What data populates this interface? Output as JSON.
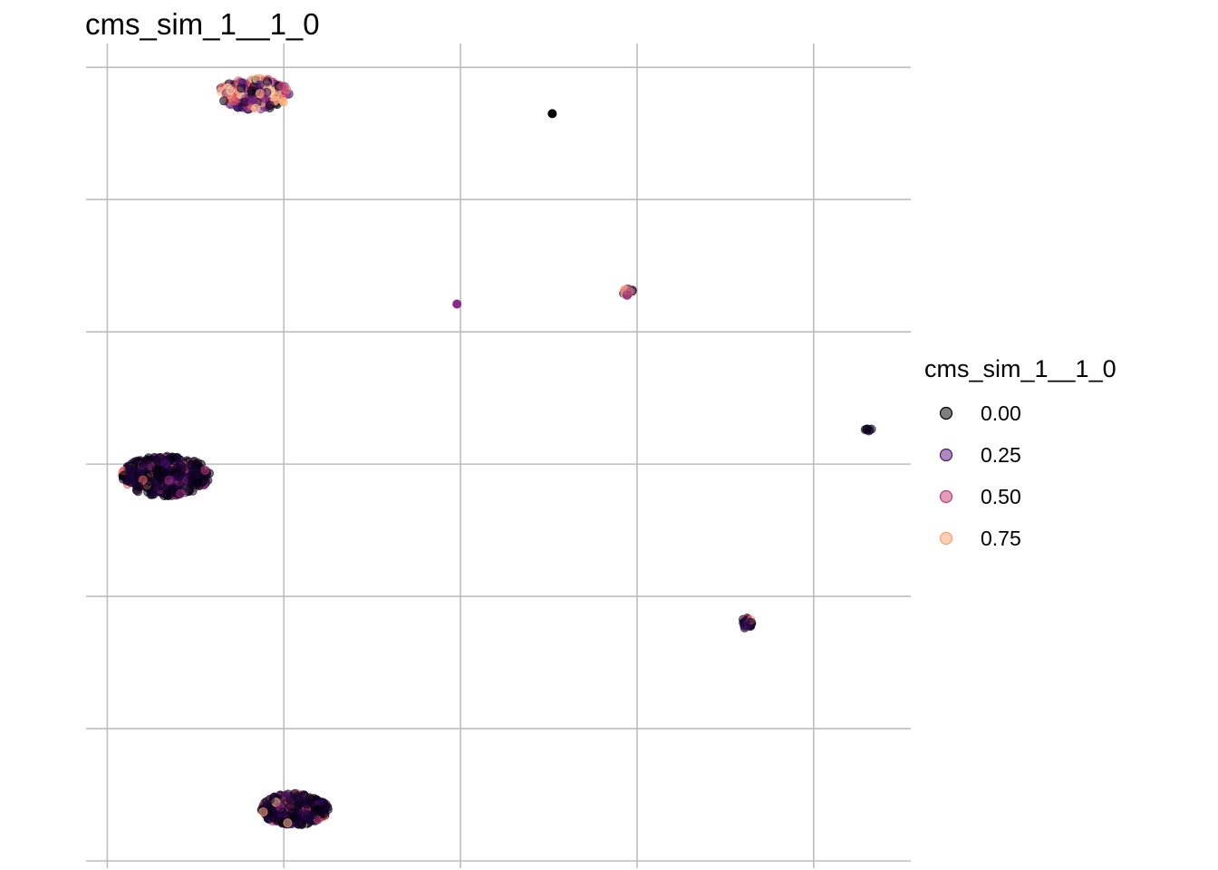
{
  "chart_data": {
    "type": "scatter",
    "title": "cms_sim_1__1_0",
    "xlabel": "",
    "ylabel": "",
    "grid": true,
    "axis_tick_labels_shown": false,
    "legend": {
      "title": "cms_sim_1__1_0",
      "position": "right",
      "entries": [
        {
          "label": "0.00",
          "value": 0.0,
          "color": "#000004"
        },
        {
          "label": "0.25",
          "value": 0.25,
          "color": "#57157e"
        },
        {
          "label": "0.50",
          "value": 0.5,
          "color": "#c43c75"
        },
        {
          "label": "0.75",
          "value": 0.75,
          "color": "#fe9f6d"
        }
      ]
    },
    "color_scale": [
      "#000004",
      "#3b0f70",
      "#8c2981",
      "#de4968",
      "#fe9f6d",
      "#fcfdbf"
    ],
    "x_gridlines": [
      0,
      1,
      2,
      3,
      4
    ],
    "y_gridlines": [
      0,
      1,
      2,
      3,
      4,
      5,
      6
    ],
    "xlim": [
      -0.12,
      4.55
    ],
    "ylim": [
      0,
      6.18
    ],
    "clusters": [
      {
        "x": 0.83,
        "y": 5.8,
        "spread_x": 0.2,
        "spread_y": 0.12,
        "n": 220,
        "mean_value": 0.55
      },
      {
        "x": 0.33,
        "y": 2.91,
        "spread_x": 0.25,
        "spread_y": 0.15,
        "n": 500,
        "mean_value": 0.05
      },
      {
        "x": 1.06,
        "y": 0.39,
        "spread_x": 0.19,
        "spread_y": 0.12,
        "n": 350,
        "mean_value": 0.03
      },
      {
        "x": 2.95,
        "y": 4.3,
        "spread_x": 0.03,
        "spread_y": 0.03,
        "n": 20,
        "mean_value": 0.4
      },
      {
        "x": 3.62,
        "y": 1.8,
        "spread_x": 0.03,
        "spread_y": 0.04,
        "n": 25,
        "mean_value": 0.15
      },
      {
        "x": 4.31,
        "y": 3.26,
        "spread_x": 0.02,
        "spread_y": 0.01,
        "n": 6,
        "mean_value": 0.1
      }
    ],
    "points": [
      {
        "x": 2.52,
        "y": 5.65,
        "value": 0.0
      },
      {
        "x": 1.98,
        "y": 4.21,
        "value": 0.4
      }
    ]
  }
}
